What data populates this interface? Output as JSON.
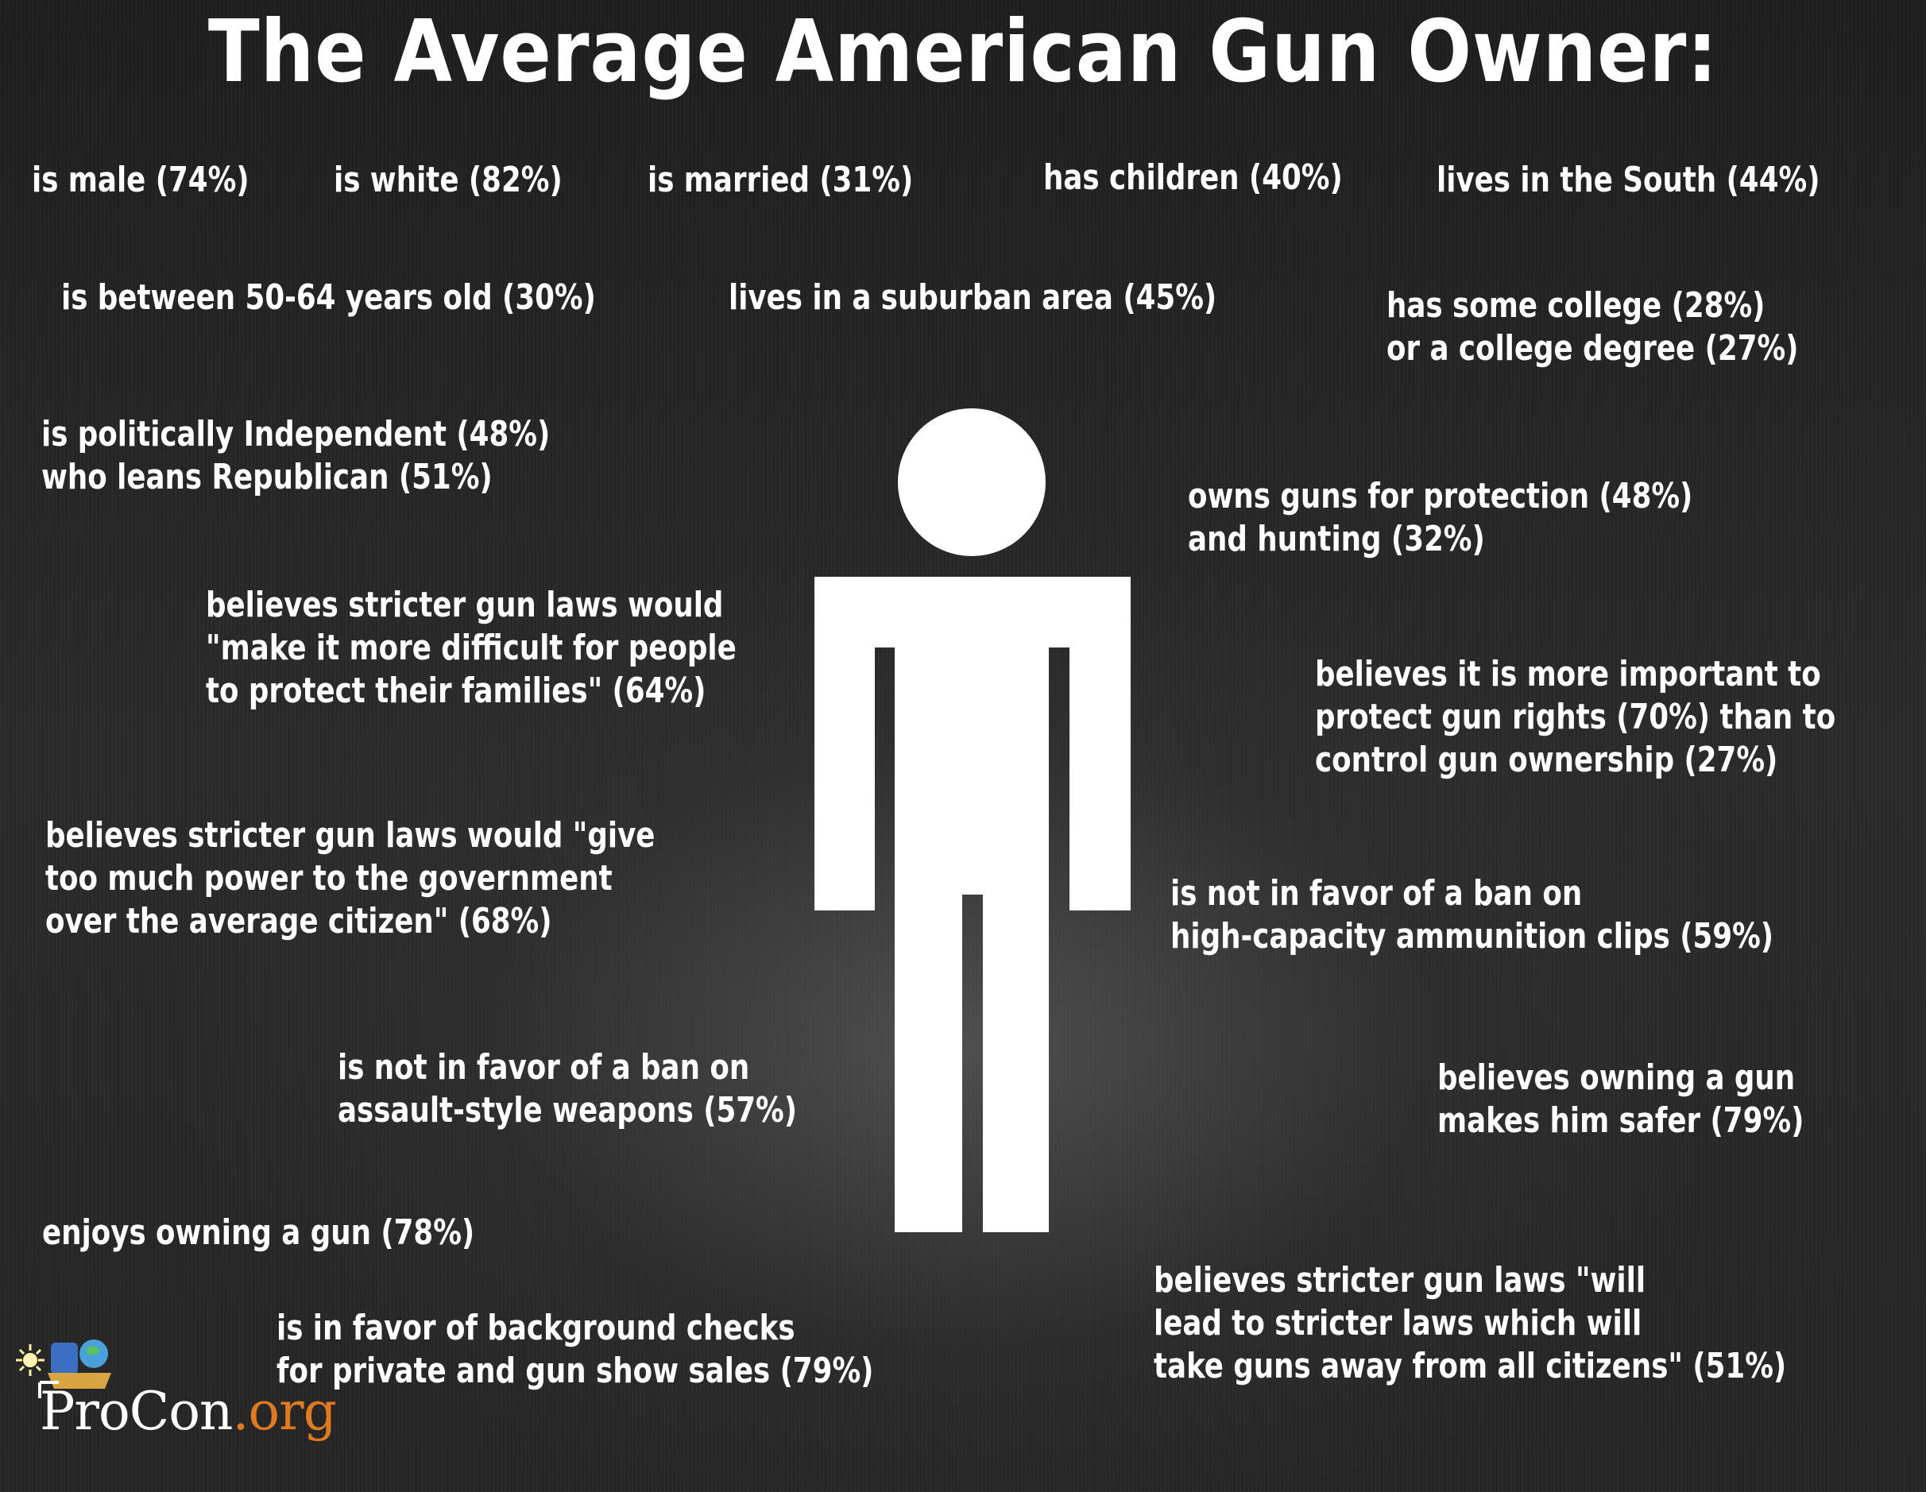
{
  "title": "The Average American Gun Owner:",
  "facts": {
    "male": "is male (74%)",
    "white": "is white (82%)",
    "married": "is married (31%)",
    "children": "has children (40%)",
    "south": "lives in the South (44%)",
    "age": "is between 50-64 years old (30%)",
    "suburban": "lives in a suburban area (45%)",
    "college": "has some college (28%)\nor a college degree (27%)",
    "political": "is politically Independent (48%)\nwho leans Republican (51%)",
    "protection": "owns guns for protection (48%)\nand hunting (32%)",
    "protect_families": "believes stricter gun laws would\n\"make it more difficult for people\nto protect their families\" (64%)",
    "gun_rights": "believes it is more important to\nprotect gun rights (70%) than to\ncontrol gun ownership (27%)",
    "government_power": "believes stricter gun laws would \"give\ntoo much power to the government\nover the average citizen\" (68%)",
    "ammo_clips": "is not in favor of a ban on\nhigh-capacity ammunition clips (59%)",
    "assault_weapons": "is not in favor of a ban on\nassault-style weapons (57%)",
    "safer": "believes owning a gun\nmakes him safer (79%)",
    "enjoys": "enjoys owning a gun (78%)",
    "background_checks": "is in favor of background checks\nfor private and gun show sales (79%)",
    "take_guns": "believes stricter gun laws \"will\nlead to stricter laws which will\ntake guns away from all citizens\" (51%)"
  },
  "logo": {
    "name": "ProCon",
    "tld": ".org"
  },
  "colors": {
    "background": "#262626",
    "text": "#ffffff",
    "logo_accent": "#e07a1f"
  }
}
